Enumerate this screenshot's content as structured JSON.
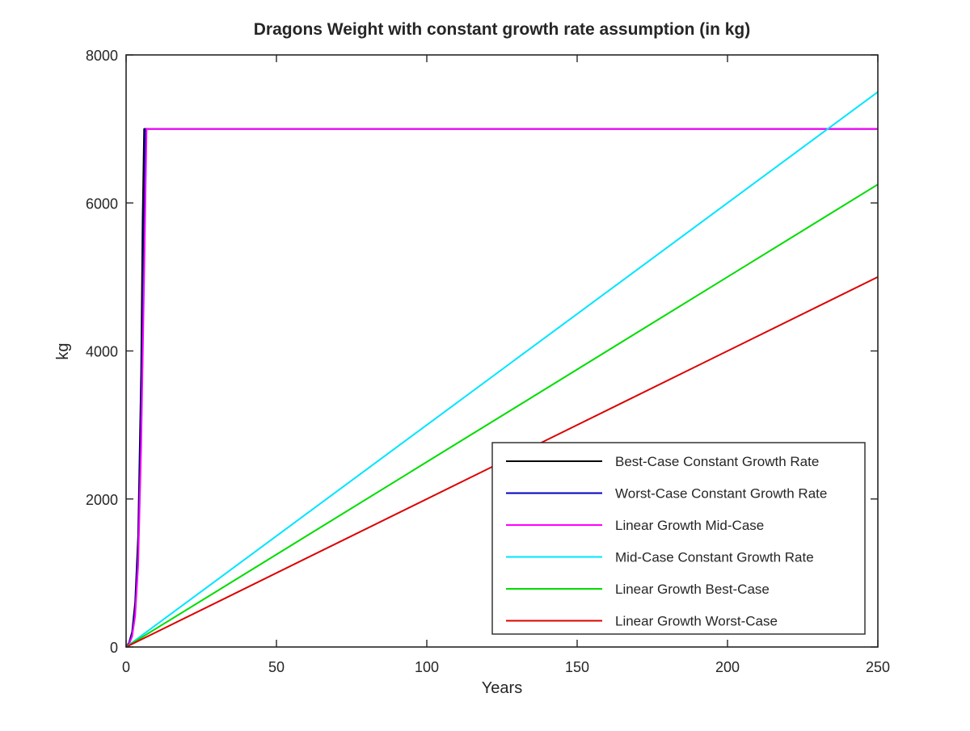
{
  "chart_data": {
    "type": "line",
    "title": "Dragons Weight with constant growth rate assumption (in kg)",
    "xlabel": "Years",
    "ylabel": "kg",
    "xlim": [
      0,
      250
    ],
    "ylim": [
      0,
      8000
    ],
    "xticks": [
      0,
      50,
      100,
      150,
      200,
      250
    ],
    "yticks": [
      0,
      2000,
      4000,
      6000,
      8000
    ],
    "legend_position": "bottom-right",
    "series": [
      {
        "name": "Best-Case Constant Growth Rate",
        "color": "#000000",
        "x": [
          0,
          1,
          2,
          3,
          4,
          5,
          5.5,
          6,
          250
        ],
        "y": [
          0,
          60,
          200,
          600,
          1500,
          3700,
          5800,
          7000,
          7000
        ]
      },
      {
        "name": "Worst-Case Constant Growth Rate",
        "color": "#0000bf",
        "x": [
          0,
          1,
          2,
          3,
          4,
          5,
          5.8,
          6.4,
          250
        ],
        "y": [
          0,
          50,
          170,
          500,
          1300,
          3200,
          5200,
          7000,
          7000
        ]
      },
      {
        "name": "Linear Growth Mid-Case",
        "color": "#ff00ff",
        "x": [
          0,
          1,
          2,
          3,
          4,
          5,
          6,
          6.8,
          250
        ],
        "y": [
          0,
          40,
          140,
          420,
          1100,
          2700,
          5000,
          7000,
          7000
        ]
      },
      {
        "name": "Mid-Case Constant Growth Rate",
        "color": "#00e5ff",
        "x": [
          0,
          250
        ],
        "y": [
          0,
          7500
        ]
      },
      {
        "name": "Linear Growth Best-Case",
        "color": "#00dd00",
        "x": [
          0,
          250
        ],
        "y": [
          0,
          6250
        ]
      },
      {
        "name": "Linear Growth Worst-Case",
        "color": "#dd0000",
        "x": [
          0,
          250
        ],
        "y": [
          0,
          5000
        ]
      }
    ]
  }
}
